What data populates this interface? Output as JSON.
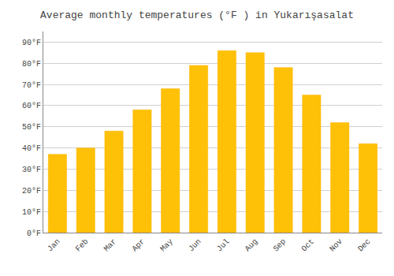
{
  "chart_data": {
    "type": "bar",
    "title": "Average monthly temperatures (°F ) in Yukarışasalat",
    "categories": [
      "Jan",
      "Feb",
      "Mar",
      "Apr",
      "May",
      "Jun",
      "Jul",
      "Aug",
      "Sep",
      "Oct",
      "Nov",
      "Dec"
    ],
    "values": [
      37,
      40,
      48,
      58,
      68,
      79,
      86,
      85,
      78,
      65,
      52,
      42
    ],
    "color": "#FFC107",
    "ylim": [
      0,
      95
    ],
    "yticks": [
      {
        "value": 0,
        "label": "0°F"
      },
      {
        "value": 10,
        "label": "10°F"
      },
      {
        "value": 20,
        "label": "20°F"
      },
      {
        "value": 30,
        "label": "30°F"
      },
      {
        "value": 40,
        "label": "40°F"
      },
      {
        "value": 50,
        "label": "50°F"
      },
      {
        "value": 60,
        "label": "60°F"
      },
      {
        "value": 70,
        "label": "70°F"
      },
      {
        "value": 80,
        "label": "80°F"
      },
      {
        "value": 90,
        "label": "90°F"
      }
    ],
    "grid": true
  }
}
